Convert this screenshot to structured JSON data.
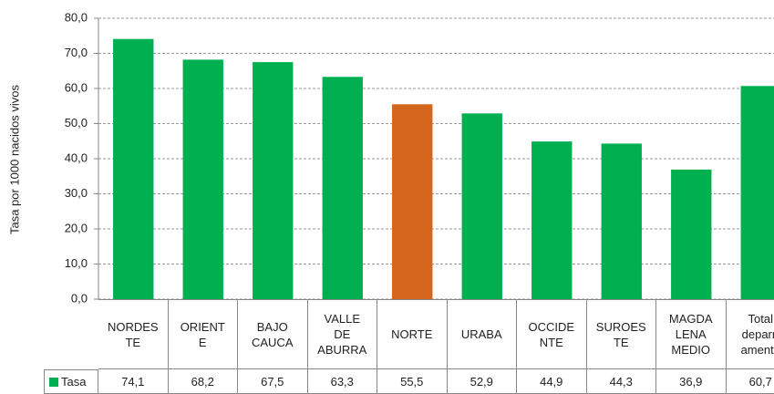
{
  "chart_data": {
    "type": "bar",
    "y_axis_label": "Tasa por 1000 nacidos vivos",
    "categories": [
      "NORDES\nTE",
      "ORIENT\nE",
      "BAJO\nCAUCA",
      "VALLE\nDE\nABURRA",
      "NORTE",
      "URABA",
      "OCCIDE\nNTE",
      "SUROES\nTE",
      "MAGDA\nLENA\nMEDIO",
      "Total\ndeparrt\namento"
    ],
    "series": [
      {
        "name": "Tasa",
        "color": "#00b050",
        "colors": [
          "#00b050",
          "#00b050",
          "#00b050",
          "#00b050",
          "#d4651c",
          "#00b050",
          "#00b050",
          "#00b050",
          "#00b050",
          "#00b050"
        ],
        "values": [
          74.1,
          68.2,
          67.5,
          63.3,
          55.5,
          52.9,
          44.9,
          44.3,
          36.9,
          60.7
        ],
        "value_labels": [
          "74,1",
          "68,2",
          "67,5",
          "63,3",
          "55,5",
          "52,9",
          "44,9",
          "44,3",
          "36,9",
          "60,7"
        ]
      }
    ],
    "ylim": [
      0,
      80
    ],
    "yticks": [
      {
        "value": 0,
        "label": "0,0"
      },
      {
        "value": 10,
        "label": "10,0"
      },
      {
        "value": 20,
        "label": "20,0"
      },
      {
        "value": 30,
        "label": "30,0"
      },
      {
        "value": 40,
        "label": "40,0"
      },
      {
        "value": 50,
        "label": "50,0"
      },
      {
        "value": 60,
        "label": "60,0"
      },
      {
        "value": 70,
        "label": "70,0"
      },
      {
        "value": 80,
        "label": "80,0"
      }
    ],
    "grid": true
  }
}
